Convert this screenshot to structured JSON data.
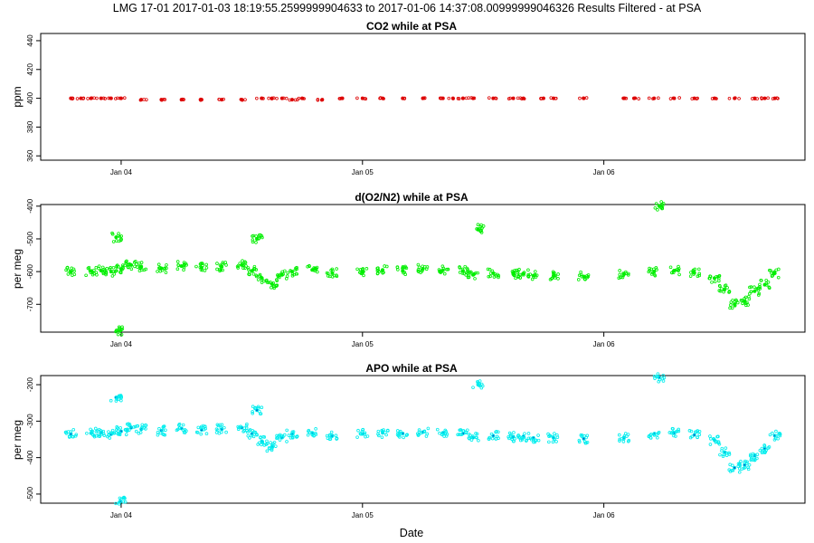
{
  "figure": {
    "main_title": "LMG   17-01    2017-01-03 18:19:55.2599999904633 to 2017-01-06 14:37:08.00999999046326   Results Filtered - at PSA",
    "xlabel": "Date"
  },
  "chart_data": [
    {
      "type": "scatter",
      "title": "CO2 while at PSA",
      "xlabel": "",
      "ylabel": "ppm",
      "x_axis": {
        "type": "date",
        "range": [
          "2017-01-03 16:00",
          "2017-01-06 20:00"
        ],
        "ticks": [
          {
            "value": "2017-01-04 00:00",
            "label": "Jan 04"
          },
          {
            "value": "2017-01-05 00:00",
            "label": "Jan 05"
          },
          {
            "value": "2017-01-06 00:00",
            "label": "Jan 06"
          }
        ]
      },
      "ylim": [
        357,
        445
      ],
      "yticks": [
        360,
        380,
        400,
        420,
        440
      ],
      "color": "#dd0000",
      "series": [
        {
          "x": [
            "2017-01-03 19:00",
            "2017-01-03 20:00",
            "2017-01-03 21:00",
            "2017-01-03 22:00",
            "2017-01-03 23:00",
            "2017-01-04 00:00",
            "2017-01-04 02:00",
            "2017-01-04 04:00",
            "2017-01-04 06:00",
            "2017-01-04 08:00",
            "2017-01-04 10:00",
            "2017-01-04 12:00",
            "2017-01-04 14:00",
            "2017-01-04 15:00",
            "2017-01-04 16:00",
            "2017-01-04 17:00",
            "2017-01-04 18:00",
            "2017-01-04 20:00",
            "2017-01-04 22:00",
            "2017-01-05 00:00",
            "2017-01-05 02:00",
            "2017-01-05 04:00",
            "2017-01-05 06:00",
            "2017-01-05 08:00",
            "2017-01-05 09:00",
            "2017-01-05 10:00",
            "2017-01-05 11:00",
            "2017-01-05 13:00",
            "2017-01-05 15:00",
            "2017-01-05 16:00",
            "2017-01-05 18:00",
            "2017-01-05 19:00",
            "2017-01-05 22:00",
            "2017-01-06 02:00",
            "2017-01-06 03:00",
            "2017-01-06 05:00",
            "2017-01-06 07:00",
            "2017-01-06 09:00",
            "2017-01-06 11:00",
            "2017-01-06 13:00",
            "2017-01-06 15:00",
            "2017-01-06 16:00",
            "2017-01-06 17:00"
          ],
          "y": [
            400,
            400,
            400,
            400,
            400,
            400,
            399,
            399,
            399,
            399,
            399,
            399,
            400,
            400,
            400,
            399,
            400,
            399,
            400,
            400,
            400,
            400,
            400,
            400,
            400,
            400,
            400,
            400,
            400,
            400,
            400,
            400,
            400,
            400,
            400,
            400,
            400,
            400,
            400,
            400,
            400,
            400,
            400
          ]
        }
      ]
    },
    {
      "type": "scatter",
      "title": "d(O2/N2) while at PSA",
      "xlabel": "",
      "ylabel": "per meg",
      "x_axis": {
        "type": "date",
        "range": [
          "2017-01-03 16:00",
          "2017-01-06 20:00"
        ],
        "ticks": [
          {
            "value": "2017-01-04 00:00",
            "label": "Jan 04"
          },
          {
            "value": "2017-01-05 00:00",
            "label": "Jan 05"
          },
          {
            "value": "2017-01-06 00:00",
            "label": "Jan 06"
          }
        ]
      },
      "ylim": [
        -785,
        -395
      ],
      "yticks": [
        -700,
        -600,
        -500,
        -400
      ],
      "color": "#00ee00",
      "series": [
        {
          "x": [
            "2017-01-03 19:00",
            "2017-01-03 21:00",
            "2017-01-03 22:00",
            "2017-01-03 23:00",
            "2017-01-04 00:00",
            "2017-01-04 01:00",
            "2017-01-04 02:00",
            "2017-01-04 04:00",
            "2017-01-04 06:00",
            "2017-01-04 08:00",
            "2017-01-04 10:00",
            "2017-01-04 12:00",
            "2017-01-04 13:00",
            "2017-01-04 14:00",
            "2017-01-04 15:00",
            "2017-01-04 16:00",
            "2017-01-04 17:00",
            "2017-01-04 19:00",
            "2017-01-04 21:00",
            "2017-01-05 00:00",
            "2017-01-05 02:00",
            "2017-01-05 04:00",
            "2017-01-05 06:00",
            "2017-01-05 08:00",
            "2017-01-05 10:00",
            "2017-01-05 11:00",
            "2017-01-05 13:00",
            "2017-01-05 15:00",
            "2017-01-05 16:00",
            "2017-01-05 17:00",
            "2017-01-05 19:00",
            "2017-01-05 22:00",
            "2017-01-06 02:00",
            "2017-01-06 05:00",
            "2017-01-06 07:00",
            "2017-01-06 09:00",
            "2017-01-06 11:00",
            "2017-01-06 12:00",
            "2017-01-06 13:00",
            "2017-01-06 14:00",
            "2017-01-06 15:00",
            "2017-01-06 16:00",
            "2017-01-06 17:00",
            "2017-01-03 23:30",
            "2017-01-03 23:55",
            "2017-01-04 13:30",
            "2017-01-05 11:30",
            "2017-01-06 05:30"
          ],
          "y": [
            -600,
            -598,
            -597,
            -600,
            -592,
            -580,
            -585,
            -590,
            -583,
            -588,
            -585,
            -580,
            -598,
            -620,
            -638,
            -610,
            -600,
            -595,
            -605,
            -600,
            -595,
            -598,
            -592,
            -596,
            -598,
            -610,
            -605,
            -608,
            -606,
            -612,
            -612,
            -615,
            -608,
            -600,
            -597,
            -604,
            -620,
            -655,
            -700,
            -690,
            -660,
            -640,
            -605,
            -495,
            -780,
            -500,
            -470,
            -400
          ]
        }
      ]
    },
    {
      "type": "scatter",
      "title": "APO while at PSA",
      "xlabel": "Date",
      "ylabel": "per meg",
      "x_axis": {
        "type": "date",
        "range": [
          "2017-01-03 16:00",
          "2017-01-06 20:00"
        ],
        "ticks": [
          {
            "value": "2017-01-04 00:00",
            "label": "Jan 04"
          },
          {
            "value": "2017-01-05 00:00",
            "label": "Jan 05"
          },
          {
            "value": "2017-01-06 00:00",
            "label": "Jan 06"
          }
        ]
      },
      "ylim": [
        -525,
        -175
      ],
      "yticks": [
        -500,
        -400,
        -300,
        -200
      ],
      "color": "#00eeee",
      "dark_color": "#0066cc",
      "series": [
        {
          "x": [
            "2017-01-03 19:00",
            "2017-01-03 21:00",
            "2017-01-03 22:00",
            "2017-01-03 23:00",
            "2017-01-04 00:00",
            "2017-01-04 01:00",
            "2017-01-04 02:00",
            "2017-01-04 04:00",
            "2017-01-04 06:00",
            "2017-01-04 08:00",
            "2017-01-04 10:00",
            "2017-01-04 12:00",
            "2017-01-04 13:00",
            "2017-01-04 14:00",
            "2017-01-04 15:00",
            "2017-01-04 16:00",
            "2017-01-04 17:00",
            "2017-01-04 19:00",
            "2017-01-04 21:00",
            "2017-01-05 00:00",
            "2017-01-05 02:00",
            "2017-01-05 04:00",
            "2017-01-05 06:00",
            "2017-01-05 08:00",
            "2017-01-05 10:00",
            "2017-01-05 11:00",
            "2017-01-05 13:00",
            "2017-01-05 15:00",
            "2017-01-05 16:00",
            "2017-01-05 17:00",
            "2017-01-05 19:00",
            "2017-01-05 22:00",
            "2017-01-06 02:00",
            "2017-01-06 05:00",
            "2017-01-06 07:00",
            "2017-01-06 09:00",
            "2017-01-06 11:00",
            "2017-01-06 12:00",
            "2017-01-06 13:00",
            "2017-01-06 14:00",
            "2017-01-06 15:00",
            "2017-01-06 16:00",
            "2017-01-06 17:00",
            "2017-01-03 23:30",
            "2017-01-03 23:55",
            "2017-01-04 13:30",
            "2017-01-05 11:30",
            "2017-01-06 05:30"
          ],
          "y": [
            -335,
            -333,
            -332,
            -336,
            -328,
            -318,
            -322,
            -326,
            -320,
            -324,
            -322,
            -318,
            -335,
            -355,
            -370,
            -345,
            -335,
            -332,
            -340,
            -335,
            -332,
            -334,
            -330,
            -332,
            -334,
            -345,
            -340,
            -343,
            -342,
            -346,
            -346,
            -348,
            -345,
            -335,
            -332,
            -338,
            -352,
            -385,
            -428,
            -420,
            -395,
            -375,
            -340,
            -235,
            -520,
            -270,
            -200,
            -180
          ]
        }
      ]
    }
  ]
}
